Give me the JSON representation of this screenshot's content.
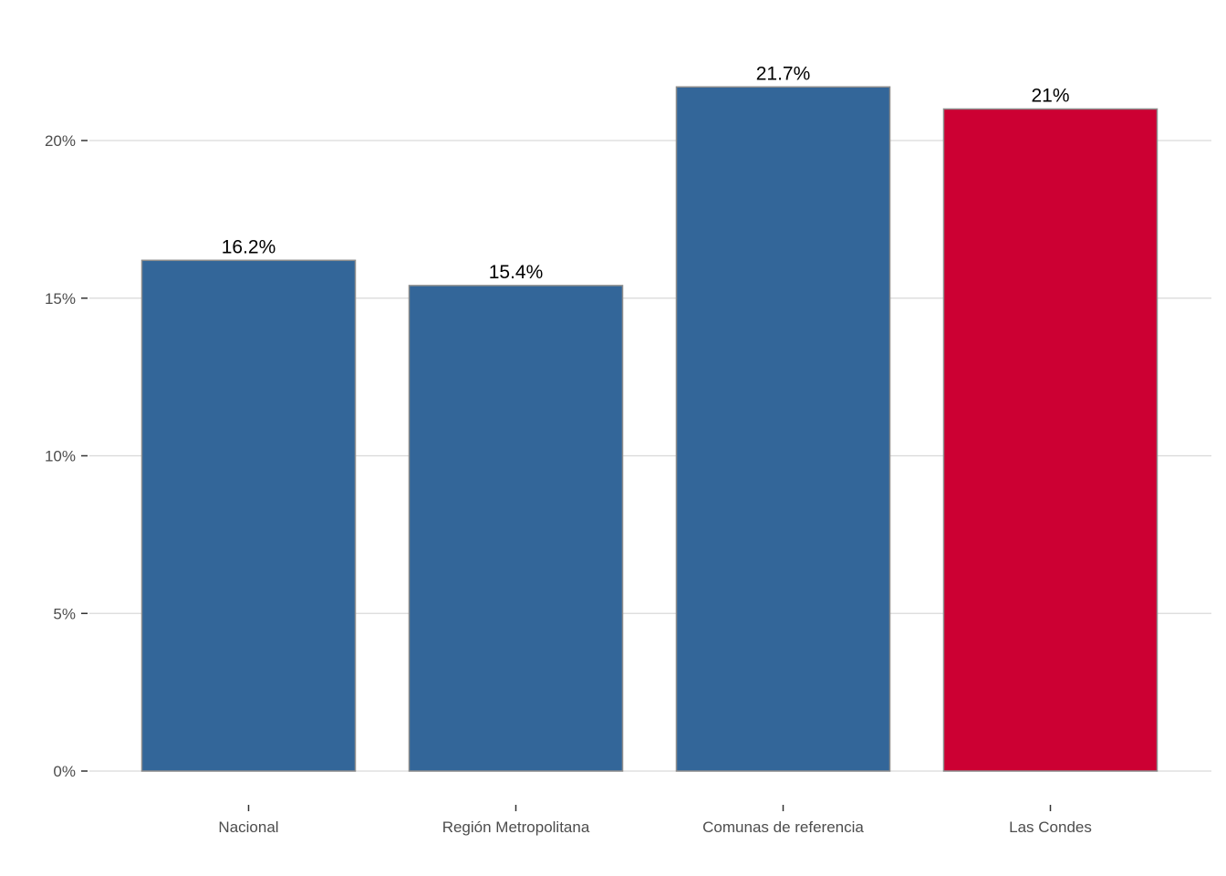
{
  "chart_data": {
    "type": "bar",
    "title": "",
    "xlabel": "",
    "ylabel": "",
    "categories": [
      "Nacional",
      "Región Metropolitana",
      "Comunas de referencia",
      "Las Condes"
    ],
    "values": [
      16.2,
      15.4,
      21.7,
      21
    ],
    "data_labels": [
      "16.2%",
      "15.4%",
      "21.7%",
      "21%"
    ],
    "ylim": [
      0,
      22.5
    ],
    "yticks": [
      0,
      5,
      10,
      15,
      20
    ],
    "ytick_labels": [
      "0%",
      "5%",
      "10%",
      "15%",
      "20%"
    ],
    "colors": [
      "#336699",
      "#336699",
      "#336699",
      "#CC0033"
    ],
    "bar_edge_color": "#8c8c8c",
    "grid": true,
    "legend": "none"
  }
}
